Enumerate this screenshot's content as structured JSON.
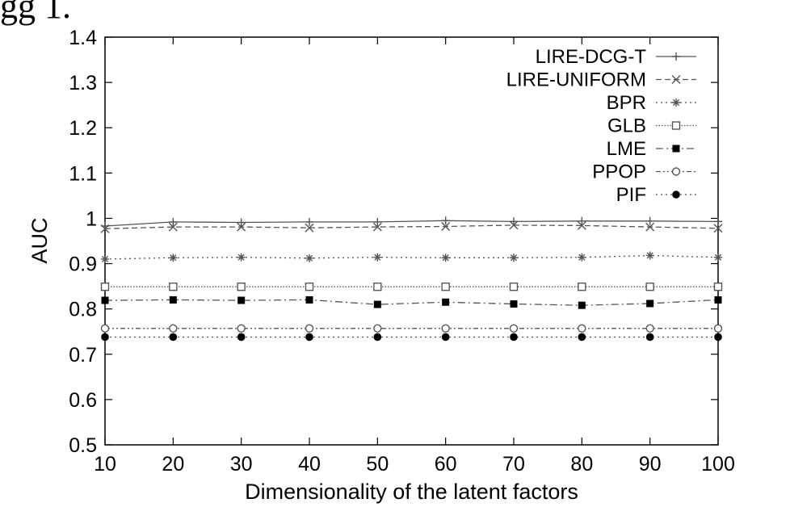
{
  "header_fragment": "gg 1.",
  "chart_data": {
    "type": "line",
    "title": "",
    "xlabel": "Dimensionality of the latent factors",
    "ylabel": "AUC",
    "x": [
      10,
      20,
      30,
      40,
      50,
      60,
      70,
      80,
      90,
      100
    ],
    "xlim": [
      10,
      100
    ],
    "ylim": [
      0.5,
      1.4
    ],
    "x_ticks": [
      "10",
      "20",
      "30",
      "40",
      "50",
      "60",
      "70",
      "80",
      "90",
      "100"
    ],
    "y_ticks": [
      "0.5",
      "0.6",
      "0.7",
      "0.8",
      "0.9",
      "1",
      "1.1",
      "1.2",
      "1.3",
      "1.4"
    ],
    "grid": false,
    "legend_position": "top-right",
    "series": [
      {
        "name": "LIRE-DCG-T",
        "marker": "plus",
        "dash": "solid",
        "color": "#555555",
        "values": [
          0.983,
          0.992,
          0.991,
          0.992,
          0.992,
          0.995,
          0.993,
          0.994,
          0.994,
          0.993
        ]
      },
      {
        "name": "LIRE-UNIFORM",
        "marker": "cross",
        "dash": "dashed",
        "color": "#555555",
        "values": [
          0.977,
          0.981,
          0.981,
          0.979,
          0.981,
          0.982,
          0.985,
          0.984,
          0.981,
          0.978
        ]
      },
      {
        "name": "BPR",
        "marker": "star",
        "dash": "dotted",
        "color": "#555555",
        "values": [
          0.91,
          0.913,
          0.914,
          0.912,
          0.914,
          0.913,
          0.913,
          0.914,
          0.918,
          0.914
        ]
      },
      {
        "name": "GLB",
        "marker": "open-square",
        "dash": "dotted-fine",
        "color": "#555555",
        "values": [
          0.849,
          0.849,
          0.849,
          0.849,
          0.849,
          0.849,
          0.849,
          0.849,
          0.849,
          0.849
        ]
      },
      {
        "name": "LME",
        "marker": "filled-square",
        "dash": "dash-dot",
        "color": "#555555",
        "values": [
          0.819,
          0.82,
          0.819,
          0.82,
          0.81,
          0.815,
          0.811,
          0.808,
          0.812,
          0.82
        ]
      },
      {
        "name": "PPOP",
        "marker": "open-circle",
        "dash": "dash-dot-dot",
        "color": "#555555",
        "values": [
          0.757,
          0.757,
          0.757,
          0.757,
          0.757,
          0.757,
          0.757,
          0.757,
          0.757,
          0.757
        ]
      },
      {
        "name": "PIF",
        "marker": "filled-circle",
        "dash": "dotted",
        "color": "#555555",
        "values": [
          0.738,
          0.738,
          0.738,
          0.738,
          0.738,
          0.738,
          0.738,
          0.738,
          0.738,
          0.738
        ]
      }
    ]
  }
}
